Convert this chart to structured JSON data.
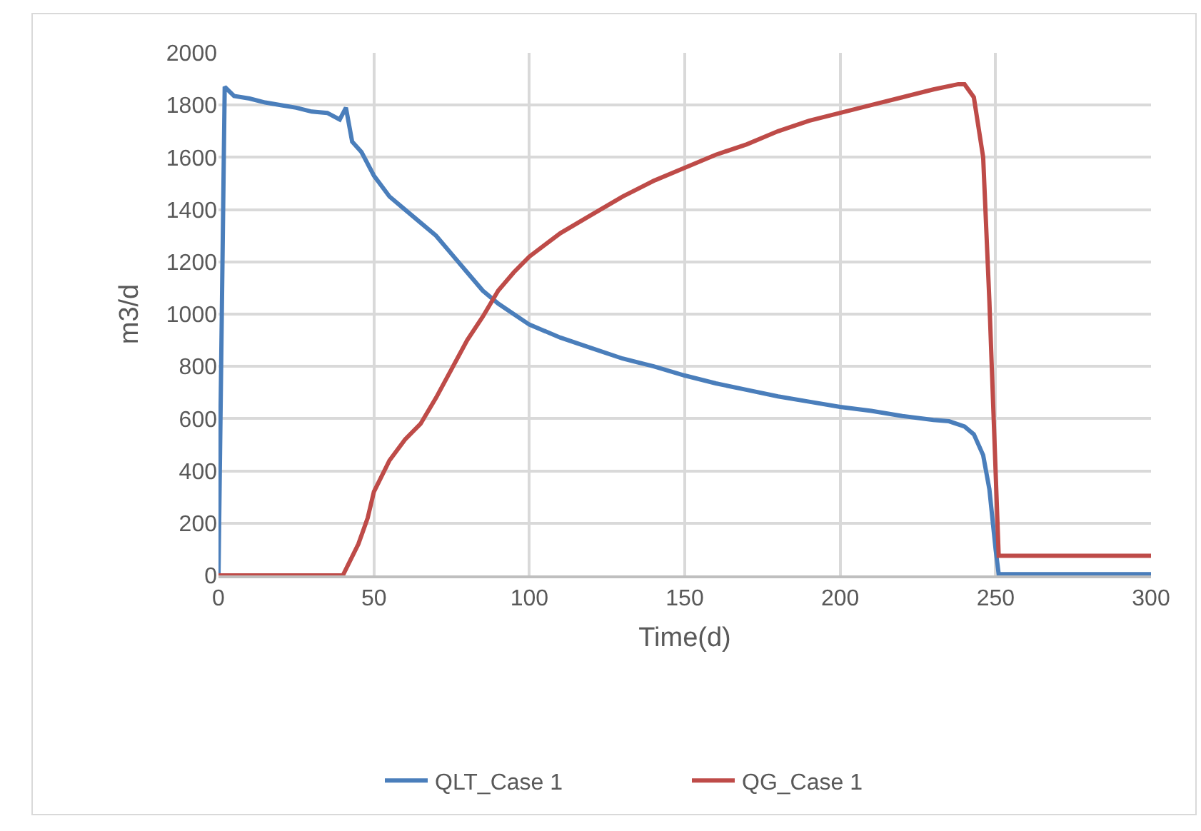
{
  "chart_data": {
    "type": "line",
    "xlabel": "Time(d)",
    "ylabel": "m3/d",
    "xlim": [
      0,
      300
    ],
    "xticks": [
      0,
      50,
      100,
      150,
      200,
      250,
      300
    ],
    "ylim": [
      0,
      2000
    ],
    "yticks": [
      0,
      200,
      400,
      600,
      800,
      1000,
      1200,
      1400,
      1600,
      1800,
      2000
    ],
    "grid": true,
    "legend": "bottom",
    "marker": "none",
    "line_style": "solid",
    "series": [
      {
        "name": "QLT_Case 1",
        "color": "#4a7ebb",
        "x": [
          0,
          2,
          5,
          10,
          15,
          20,
          25,
          30,
          35,
          39,
          41,
          43,
          46,
          50,
          55,
          60,
          65,
          70,
          75,
          80,
          85,
          90,
          95,
          100,
          110,
          120,
          130,
          140,
          150,
          160,
          170,
          180,
          190,
          200,
          210,
          220,
          230,
          235,
          240,
          243,
          246,
          248,
          250,
          251,
          260,
          300
        ],
        "values": [
          0,
          1870,
          1835,
          1825,
          1810,
          1800,
          1790,
          1775,
          1770,
          1745,
          1790,
          1660,
          1620,
          1530,
          1450,
          1400,
          1350,
          1300,
          1230,
          1160,
          1090,
          1040,
          1000,
          960,
          910,
          870,
          830,
          800,
          765,
          735,
          710,
          685,
          665,
          645,
          630,
          610,
          595,
          590,
          570,
          540,
          460,
          330,
          100,
          5,
          5,
          5
        ]
      },
      {
        "name": "QG_Case 1",
        "color": "#be4b48",
        "x": [
          0,
          40,
          45,
          48,
          50,
          55,
          60,
          65,
          70,
          75,
          80,
          85,
          90,
          95,
          100,
          110,
          120,
          130,
          140,
          150,
          160,
          170,
          180,
          190,
          200,
          210,
          220,
          230,
          238,
          240,
          243,
          246,
          248,
          251,
          260,
          300
        ],
        "values": [
          0,
          0,
          120,
          220,
          320,
          440,
          520,
          580,
          680,
          790,
          900,
          990,
          1090,
          1160,
          1220,
          1310,
          1380,
          1450,
          1510,
          1560,
          1610,
          1650,
          1700,
          1740,
          1770,
          1800,
          1830,
          1860,
          1880,
          1880,
          1830,
          1600,
          1050,
          75,
          75,
          75
        ]
      }
    ]
  }
}
